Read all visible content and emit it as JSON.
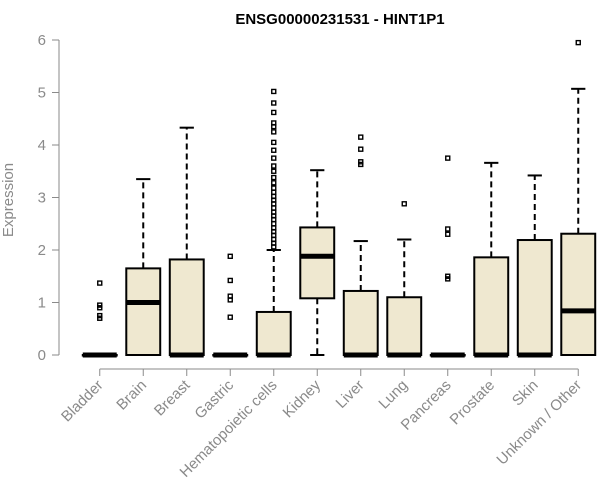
{
  "chart_data": {
    "type": "boxplot",
    "title": "ENSG00000231531 - HINT1P1",
    "xlabel": "",
    "ylabel": "Expression",
    "ylim": [
      0,
      6
    ],
    "yticks": [
      "0",
      "1",
      "2",
      "3",
      "4",
      "5",
      "6"
    ],
    "grid": false,
    "box_color": "#efe8d0",
    "categories": [
      "Bladder",
      "Brain",
      "Breast",
      "Gastric",
      "Hematopoietic cells",
      "Kidney",
      "Liver",
      "Lung",
      "Pancreas",
      "Prostate",
      "Skin",
      "Unknown / Other"
    ],
    "boxes": [
      {
        "min": 0,
        "q1": 0,
        "median": 0,
        "q3": 0,
        "max": 0,
        "outliers": [
          1.37,
          0.95,
          0.9,
          0.75,
          0.7
        ]
      },
      {
        "min": 0,
        "q1": 0,
        "median": 1.0,
        "q3": 1.65,
        "max": 3.35,
        "outliers": []
      },
      {
        "min": 0,
        "q1": 0,
        "median": 0,
        "q3": 1.82,
        "max": 4.33,
        "outliers": []
      },
      {
        "min": 0,
        "q1": 0,
        "median": 0,
        "q3": 0,
        "max": 0,
        "outliers": [
          1.88,
          1.42,
          1.12,
          1.05,
          0.72
        ]
      },
      {
        "min": 0,
        "q1": 0,
        "median": 0,
        "q3": 0.82,
        "max": 2.0,
        "outliers": [
          5.02,
          4.8,
          4.62,
          4.42,
          4.35,
          4.25,
          4.05,
          3.9,
          3.75,
          3.6,
          3.5,
          3.38,
          3.28,
          3.18,
          3.1,
          3.02,
          2.95,
          2.88,
          2.8,
          2.72,
          2.65,
          2.58,
          2.5,
          2.42,
          2.35,
          2.28,
          2.2,
          2.13,
          2.06
        ]
      },
      {
        "min": 0,
        "q1": 1.08,
        "median": 1.88,
        "q3": 2.43,
        "max": 3.52,
        "outliers": []
      },
      {
        "min": 0,
        "q1": 0,
        "median": 0,
        "q3": 1.22,
        "max": 2.17,
        "outliers": [
          4.15,
          3.92,
          3.68,
          3.63
        ]
      },
      {
        "min": 0,
        "q1": 0,
        "median": 0,
        "q3": 1.1,
        "max": 2.2,
        "outliers": [
          2.88
        ]
      },
      {
        "min": 0,
        "q1": 0,
        "median": 0,
        "q3": 0,
        "max": 0,
        "outliers": [
          3.75,
          2.4,
          2.3,
          1.5,
          1.45
        ]
      },
      {
        "min": 0,
        "q1": 0,
        "median": 0,
        "q3": 1.86,
        "max": 3.66,
        "outliers": []
      },
      {
        "min": 0,
        "q1": 0,
        "median": 0,
        "q3": 2.19,
        "max": 3.42,
        "outliers": []
      },
      {
        "min": 0,
        "q1": 0,
        "median": 0.84,
        "q3": 2.31,
        "max": 5.07,
        "outliers": [
          5.95
        ]
      }
    ]
  }
}
